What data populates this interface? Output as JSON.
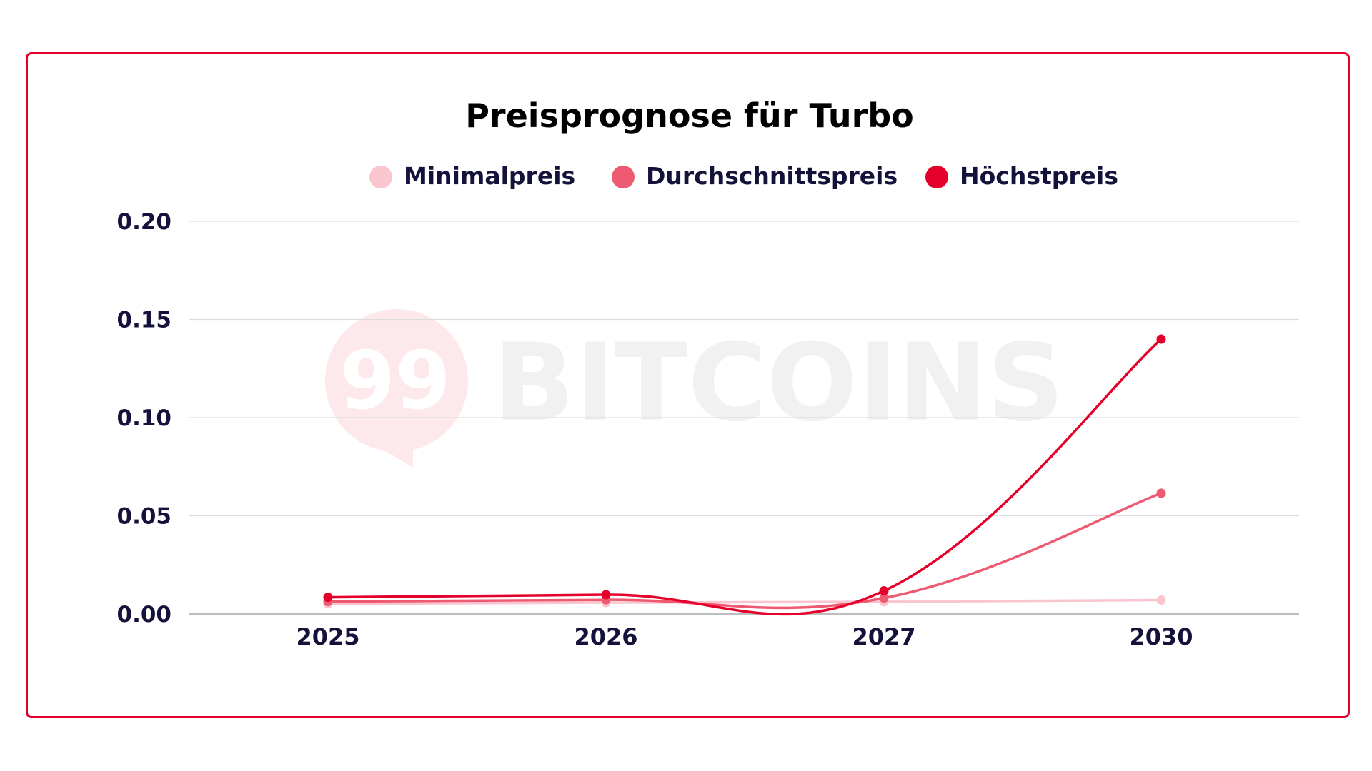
{
  "chart_data": {
    "type": "line",
    "title": "Preisprognose für Turbo",
    "xlabel": "",
    "ylabel": "",
    "categories": [
      "2025",
      "2026",
      "2027",
      "2030"
    ],
    "ylim": [
      0,
      0.2
    ],
    "yticks": [
      "0.00",
      "0.05",
      "0.10",
      "0.15",
      "0.20"
    ],
    "grid": true,
    "legend_position": "top-center",
    "series": [
      {
        "name": "Minimalpreis",
        "color": "#f9c6d0",
        "values": [
          0.0052,
          0.0058,
          0.0062,
          0.0071
        ]
      },
      {
        "name": "Durchschnittspreis",
        "color": "#ee5a72",
        "values": [
          0.0063,
          0.0072,
          0.0081,
          0.0615
        ]
      },
      {
        "name": "Höchstpreis",
        "color": "#e4002b",
        "values": [
          0.0085,
          0.0098,
          0.0118,
          0.14
        ]
      }
    ]
  },
  "watermark": {
    "badge_text": "99",
    "text": "BITCOINS",
    "badge_color": "#fde8eb",
    "text_color": "#f1f1f2"
  },
  "colors": {
    "frame": "#e4002b",
    "grid": "#dddddd",
    "axis": "#bdbdbd",
    "text": "#14123a"
  }
}
